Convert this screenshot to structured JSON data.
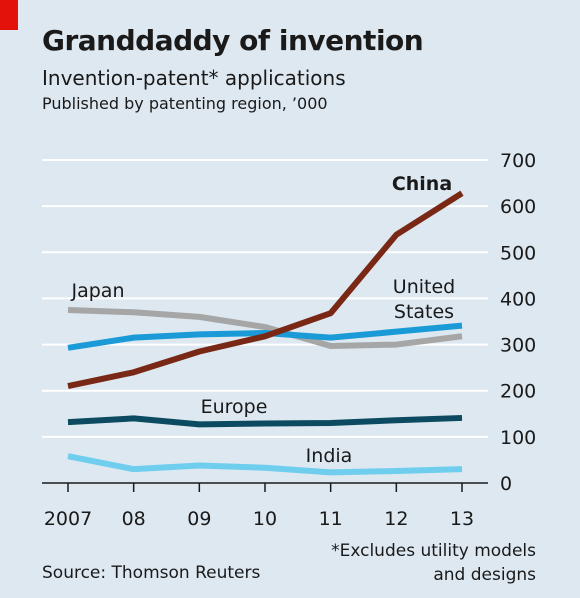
{
  "header": {
    "title": "Granddaddy of invention",
    "subtitle": "Invention-patent* applications",
    "subsubtitle": "Published by patenting region, ’000"
  },
  "footer": {
    "source": "Source: Thomson Reuters",
    "footnote_line1": "*Excludes utility models",
    "footnote_line2": "and designs"
  },
  "colors": {
    "background": "#dde8f0",
    "brand_red": "#e3120b",
    "gridline": "#ffffff"
  },
  "chart_data": {
    "type": "line",
    "title": "Granddaddy of invention",
    "subtitle": "Invention-patent* applications",
    "ylabel": "Published by patenting region, ’000",
    "x": [
      2007,
      2008,
      2009,
      2010,
      2011,
      2012,
      2013
    ],
    "x_tick_labels": [
      "2007",
      "08",
      "09",
      "10",
      "11",
      "12",
      "13"
    ],
    "y_ticks": [
      0,
      100,
      200,
      300,
      400,
      500,
      600,
      700
    ],
    "ylim": [
      0,
      700
    ],
    "y_axis_position": "right",
    "grid": true,
    "legend": "inline labels",
    "series": [
      {
        "name": "China",
        "color": "#7a2816",
        "bold_label": true,
        "values": [
          210,
          240,
          285,
          318,
          368,
          538,
          628
        ]
      },
      {
        "name": "Japan",
        "color": "#a6a6a6",
        "values": [
          375,
          370,
          360,
          338,
          297,
          300,
          318
        ]
      },
      {
        "name": "United States",
        "label_lines": [
          "United",
          "States"
        ],
        "color": "#1a9ad6",
        "values": [
          293,
          315,
          322,
          325,
          315,
          328,
          341
        ]
      },
      {
        "name": "Europe",
        "color": "#0b4a60",
        "values": [
          132,
          140,
          127,
          129,
          130,
          136,
          141
        ]
      },
      {
        "name": "India",
        "color": "#6fcdee",
        "values": [
          58,
          30,
          38,
          33,
          23,
          26,
          30
        ]
      }
    ]
  }
}
